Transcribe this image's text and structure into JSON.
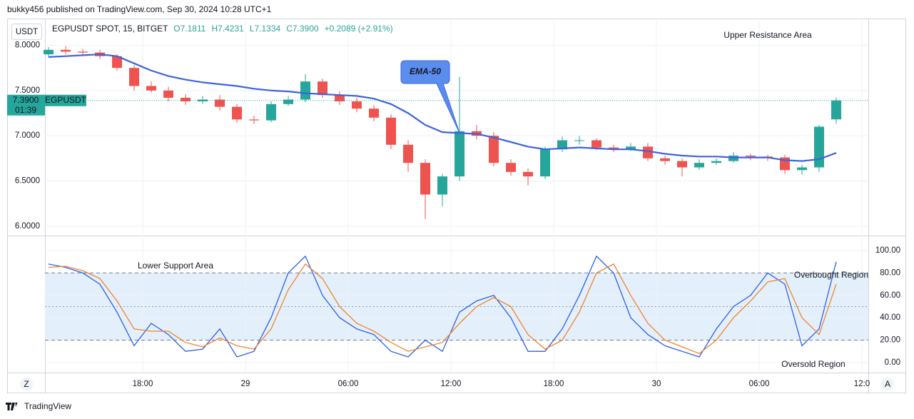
{
  "page": {
    "published": "bukky456 published on TradingView.com, Sep 30, 2024 10:28 UTC+1",
    "brand": "TradingView",
    "left_button": "Z",
    "right_button": "A"
  },
  "chart_data": [
    {
      "type": "candlestick",
      "currency": "USDT",
      "title": "EGPUSDT SPOT, 15, BITGET",
      "ohlc_labels": [
        "O7.1811",
        "H7.4231",
        "L7.1334",
        "C7.3900",
        "+0.2089 (+2.91%)"
      ],
      "last_price_label": "7.3900",
      "countdown": "01:39",
      "symbol_label": "EGPUSDT",
      "annotations": [
        "Upper Resistance Area"
      ],
      "up_color": "#26a69a",
      "down_color": "#ef5350",
      "x": [
        12.5,
        13.5,
        14.5,
        15.5,
        16.5,
        17.5,
        18.5,
        19.5,
        20.5,
        21.5,
        22.5,
        23.5,
        24.5,
        25.5,
        26.5,
        27.5,
        28.5,
        29.5,
        30.5,
        31.5,
        32.5,
        33.5,
        34.5,
        35.5,
        36.5,
        37.5,
        38.5,
        39.5,
        40.5,
        41.5,
        42.5,
        43.5,
        44.5,
        45.5,
        46.5,
        47.5,
        48.5,
        49.5,
        50.5,
        51.5,
        52.5,
        53.5,
        54.5,
        55.5,
        56.5,
        57.5,
        58.5
      ],
      "open": [
        7.9,
        7.95,
        7.93,
        7.92,
        7.88,
        7.75,
        7.55,
        7.5,
        7.42,
        7.38,
        7.4,
        7.32,
        7.18,
        7.17,
        7.35,
        7.4,
        7.6,
        7.45,
        7.38,
        7.3,
        7.2,
        6.9,
        6.7,
        6.35,
        6.55,
        7.05,
        7.0,
        6.7,
        6.6,
        6.55,
        6.85,
        6.95,
        6.95,
        6.87,
        6.85,
        6.88,
        6.75,
        6.72,
        6.65,
        6.7,
        6.72,
        6.78,
        6.77,
        6.76,
        6.62,
        6.65,
        7.1811
      ],
      "high": [
        7.98,
        7.99,
        7.96,
        7.95,
        7.9,
        7.78,
        7.6,
        7.54,
        7.46,
        7.44,
        7.45,
        7.35,
        7.22,
        7.38,
        7.44,
        7.68,
        7.63,
        7.49,
        7.42,
        7.34,
        7.24,
        6.95,
        6.74,
        6.58,
        7.65,
        7.12,
        7.04,
        6.74,
        6.64,
        6.88,
        6.99,
        7.0,
        6.97,
        6.9,
        6.92,
        6.92,
        6.78,
        6.75,
        6.74,
        6.75,
        6.82,
        6.8,
        6.79,
        6.79,
        6.68,
        7.12,
        7.4231
      ],
      "low": [
        7.87,
        7.9,
        7.89,
        7.85,
        7.72,
        7.5,
        7.48,
        7.38,
        7.34,
        7.35,
        7.28,
        7.14,
        7.13,
        7.15,
        7.33,
        7.37,
        7.42,
        7.34,
        7.26,
        7.16,
        6.85,
        6.6,
        6.08,
        6.22,
        6.5,
        6.96,
        6.66,
        6.56,
        6.45,
        6.52,
        6.82,
        6.9,
        6.84,
        6.82,
        6.83,
        6.72,
        6.68,
        6.55,
        6.62,
        6.68,
        6.7,
        6.73,
        6.72,
        6.58,
        6.57,
        6.6,
        7.1334
      ],
      "close": [
        7.95,
        7.93,
        7.92,
        7.88,
        7.75,
        7.55,
        7.5,
        7.42,
        7.38,
        7.4,
        7.32,
        7.18,
        7.17,
        7.35,
        7.4,
        7.6,
        7.45,
        7.38,
        7.3,
        7.2,
        6.9,
        6.7,
        6.35,
        6.55,
        7.05,
        7.0,
        6.7,
        6.6,
        6.55,
        6.85,
        6.95,
        6.95,
        6.87,
        6.85,
        6.88,
        6.75,
        6.72,
        6.65,
        6.7,
        6.72,
        6.78,
        6.77,
        6.76,
        6.62,
        6.65,
        7.1,
        7.39
      ],
      "series": [
        {
          "name": "EMA-50",
          "color": "#3d63dd",
          "values": [
            7.87,
            7.88,
            7.89,
            7.9,
            7.88,
            7.8,
            7.72,
            7.66,
            7.62,
            7.59,
            7.57,
            7.55,
            7.52,
            7.5,
            7.49,
            7.47,
            7.46,
            7.45,
            7.44,
            7.41,
            7.35,
            7.25,
            7.12,
            7.04,
            7.03,
            7.02,
            6.98,
            6.93,
            6.88,
            6.85,
            6.86,
            6.87,
            6.86,
            6.85,
            6.85,
            6.83,
            6.8,
            6.78,
            6.77,
            6.77,
            6.76,
            6.76,
            6.76,
            6.73,
            6.72,
            6.74,
            6.81
          ]
        }
      ],
      "xlim": [
        12.29,
        60.375
      ],
      "xticks": [
        {
          "value": 18,
          "label": "18:00"
        },
        {
          "value": 24,
          "label": "29"
        },
        {
          "value": 30,
          "label": "06:00"
        },
        {
          "value": 36,
          "label": "12:00"
        },
        {
          "value": 42,
          "label": "18:00"
        },
        {
          "value": 48,
          "label": "30"
        },
        {
          "value": 54,
          "label": "06:00"
        },
        {
          "value": 60,
          "label": "12:0"
        }
      ],
      "ylim": [
        5.92,
        8.28
      ],
      "yticks": [
        {
          "value": 6,
          "label": "6.0000"
        },
        {
          "value": 6.5,
          "label": "6.5000"
        },
        {
          "value": 7,
          "label": "7.0000"
        },
        {
          "value": 7.5,
          "label": "7.5000"
        },
        {
          "value": 8,
          "label": "8.0000"
        }
      ],
      "grid": true
    },
    {
      "type": "line",
      "annotations": [
        "Lower Support Area",
        "Overbought Region",
        "Oversold Region"
      ],
      "x": [
        12.5,
        13.5,
        14.5,
        15.5,
        16.5,
        17.5,
        18.5,
        19.5,
        20.5,
        21.5,
        22.5,
        23.5,
        24.5,
        25.5,
        26.5,
        27.5,
        28.5,
        29.5,
        30.5,
        31.5,
        32.5,
        33.5,
        34.5,
        35.5,
        36.5,
        37.5,
        38.5,
        39.5,
        40.5,
        41.5,
        42.5,
        43.5,
        44.5,
        45.5,
        46.5,
        47.5,
        48.5,
        49.5,
        50.5,
        51.5,
        52.5,
        53.5,
        54.5,
        55.5,
        56.5,
        57.5,
        58.5
      ],
      "series": [
        {
          "color": "#2f5fe8",
          "values": [
            88,
            85,
            80,
            70,
            45,
            15,
            35,
            25,
            10,
            12,
            30,
            5,
            10,
            40,
            80,
            95,
            60,
            40,
            30,
            25,
            10,
            5,
            20,
            10,
            45,
            55,
            60,
            40,
            10,
            10,
            30,
            60,
            95,
            80,
            40,
            25,
            15,
            10,
            5,
            30,
            50,
            60,
            80,
            70,
            15,
            30,
            90
          ]
        },
        {
          "color": "#f0842c",
          "values": [
            85,
            86,
            82,
            75,
            55,
            30,
            28,
            28,
            18,
            14,
            22,
            15,
            12,
            30,
            65,
            88,
            75,
            50,
            35,
            28,
            18,
            10,
            14,
            18,
            35,
            50,
            58,
            50,
            25,
            12,
            20,
            45,
            80,
            88,
            60,
            35,
            20,
            14,
            8,
            20,
            40,
            55,
            72,
            75,
            40,
            25,
            70
          ]
        }
      ],
      "band": [
        20,
        80
      ],
      "band_color": "#e3f0fb",
      "midline": 50,
      "xlim": [
        12.29,
        60.375
      ],
      "xticks": [
        {
          "value": 18,
          "label": "18:00"
        },
        {
          "value": 24,
          "label": "29"
        },
        {
          "value": 30,
          "label": "06:00"
        },
        {
          "value": 36,
          "label": "12:00"
        },
        {
          "value": 42,
          "label": "18:00"
        },
        {
          "value": 48,
          "label": "30"
        },
        {
          "value": 54,
          "label": "06:00"
        },
        {
          "value": 60,
          "label": "12:0"
        }
      ],
      "ylim": [
        -9,
        111.5
      ],
      "yticks": [
        {
          "value": 0,
          "label": "0.00"
        },
        {
          "value": 20,
          "label": "20.00"
        },
        {
          "value": 40,
          "label": "40.00"
        },
        {
          "value": 60,
          "label": "60.00"
        },
        {
          "value": 80,
          "label": "80.00"
        },
        {
          "value": 100,
          "label": "100.00"
        }
      ],
      "grid": true
    }
  ]
}
